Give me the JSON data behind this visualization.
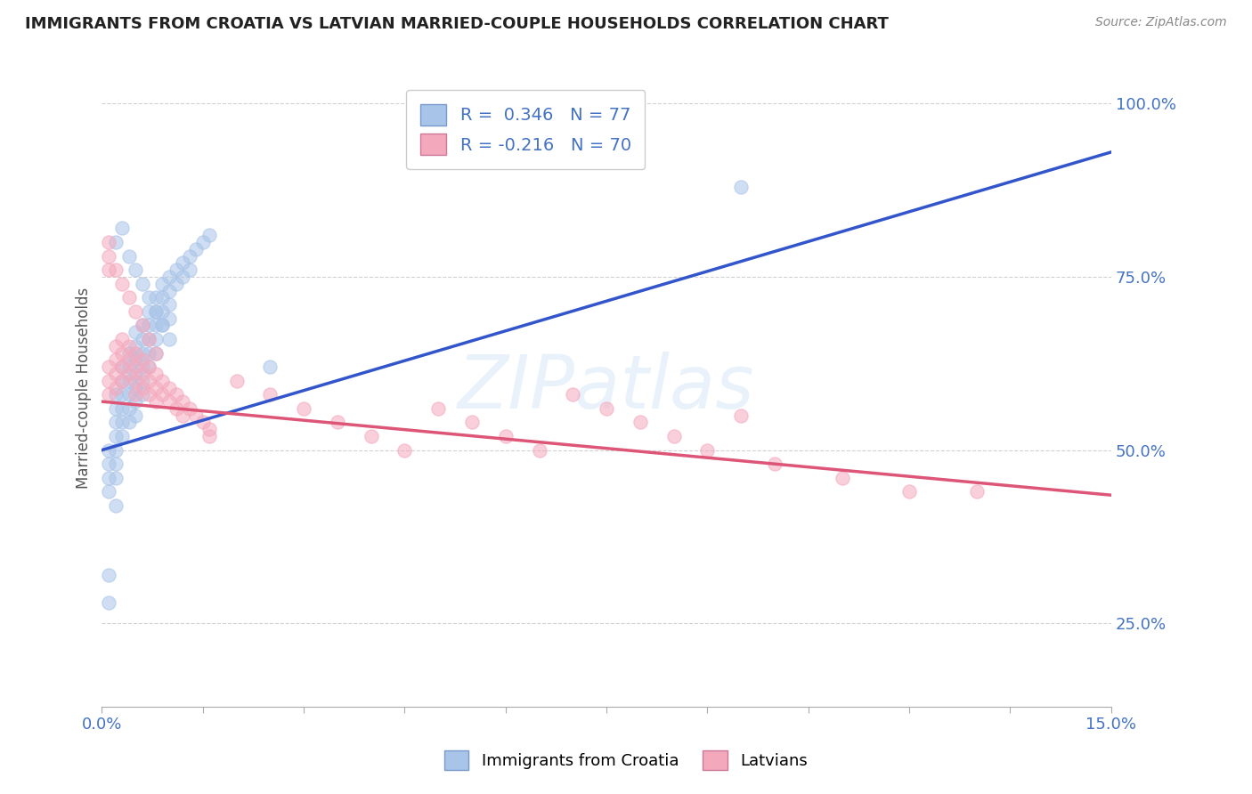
{
  "title": "IMMIGRANTS FROM CROATIA VS LATVIAN MARRIED-COUPLE HOUSEHOLDS CORRELATION CHART",
  "source": "Source: ZipAtlas.com",
  "ylabel": "Married-couple Households",
  "xlim": [
    0.0,
    0.15
  ],
  "ylim": [
    0.13,
    1.05
  ],
  "xticks": [
    0.0,
    0.015,
    0.03,
    0.045,
    0.06,
    0.075,
    0.09,
    0.105,
    0.12,
    0.135,
    0.15
  ],
  "xtick_labels": [
    "0.0%",
    "",
    "",
    "",
    "",
    "",
    "",
    "",
    "",
    "",
    "15.0%"
  ],
  "yticks": [
    0.25,
    0.5,
    0.75,
    1.0
  ],
  "ytick_labels": [
    "25.0%",
    "50.0%",
    "75.0%",
    "100.0%"
  ],
  "R_croatia": 0.346,
  "N_croatia": 77,
  "R_latvian": -0.216,
  "N_latvian": 70,
  "color_croatia": "#a8c4e8",
  "color_latvian": "#f4a8bc",
  "trendline_croatia": "#3355cc",
  "trendline_latvian": "#dd5577",
  "background_color": "#ffffff",
  "grid_color": "#cccccc",
  "legend_color_croatia": "#a8c4e8",
  "legend_color_latvian": "#f4a8bc",
  "trendline_blue_x0": 0.0,
  "trendline_blue_y0": 0.5,
  "trendline_blue_x1": 0.15,
  "trendline_blue_y1": 0.93,
  "trendline_pink_x0": 0.0,
  "trendline_pink_y0": 0.57,
  "trendline_pink_x1": 0.15,
  "trendline_pink_y1": 0.435,
  "croatia_scatter_x": [
    0.001,
    0.001,
    0.001,
    0.001,
    0.002,
    0.002,
    0.002,
    0.002,
    0.002,
    0.002,
    0.002,
    0.003,
    0.003,
    0.003,
    0.003,
    0.003,
    0.003,
    0.004,
    0.004,
    0.004,
    0.004,
    0.004,
    0.004,
    0.005,
    0.005,
    0.005,
    0.005,
    0.005,
    0.005,
    0.005,
    0.006,
    0.006,
    0.006,
    0.006,
    0.006,
    0.006,
    0.007,
    0.007,
    0.007,
    0.007,
    0.007,
    0.008,
    0.008,
    0.008,
    0.008,
    0.008,
    0.009,
    0.009,
    0.009,
    0.009,
    0.01,
    0.01,
    0.01,
    0.01,
    0.011,
    0.011,
    0.012,
    0.012,
    0.013,
    0.013,
    0.014,
    0.015,
    0.016,
    0.002,
    0.003,
    0.004,
    0.005,
    0.006,
    0.007,
    0.008,
    0.009,
    0.01,
    0.001,
    0.001,
    0.002,
    0.025,
    0.095
  ],
  "croatia_scatter_y": [
    0.5,
    0.48,
    0.46,
    0.44,
    0.58,
    0.56,
    0.54,
    0.52,
    0.5,
    0.48,
    0.46,
    0.62,
    0.6,
    0.58,
    0.56,
    0.54,
    0.52,
    0.64,
    0.62,
    0.6,
    0.58,
    0.56,
    0.54,
    0.67,
    0.65,
    0.63,
    0.61,
    0.59,
    0.57,
    0.55,
    0.68,
    0.66,
    0.64,
    0.62,
    0.6,
    0.58,
    0.7,
    0.68,
    0.66,
    0.64,
    0.62,
    0.72,
    0.7,
    0.68,
    0.66,
    0.64,
    0.74,
    0.72,
    0.7,
    0.68,
    0.75,
    0.73,
    0.71,
    0.69,
    0.76,
    0.74,
    0.77,
    0.75,
    0.78,
    0.76,
    0.79,
    0.8,
    0.81,
    0.8,
    0.82,
    0.78,
    0.76,
    0.74,
    0.72,
    0.7,
    0.68,
    0.66,
    0.32,
    0.28,
    0.42,
    0.62,
    0.88
  ],
  "latvian_scatter_x": [
    0.001,
    0.001,
    0.001,
    0.002,
    0.002,
    0.002,
    0.002,
    0.003,
    0.003,
    0.003,
    0.003,
    0.004,
    0.004,
    0.004,
    0.005,
    0.005,
    0.005,
    0.005,
    0.006,
    0.006,
    0.006,
    0.007,
    0.007,
    0.007,
    0.008,
    0.008,
    0.008,
    0.009,
    0.009,
    0.01,
    0.01,
    0.011,
    0.011,
    0.012,
    0.012,
    0.013,
    0.014,
    0.015,
    0.016,
    0.016,
    0.002,
    0.003,
    0.004,
    0.005,
    0.006,
    0.007,
    0.008,
    0.001,
    0.001,
    0.001,
    0.02,
    0.025,
    0.03,
    0.035,
    0.04,
    0.045,
    0.05,
    0.055,
    0.06,
    0.065,
    0.07,
    0.075,
    0.08,
    0.085,
    0.09,
    0.095,
    0.1,
    0.11,
    0.12,
    0.13
  ],
  "latvian_scatter_y": [
    0.62,
    0.6,
    0.58,
    0.65,
    0.63,
    0.61,
    0.59,
    0.66,
    0.64,
    0.62,
    0.6,
    0.65,
    0.63,
    0.61,
    0.64,
    0.62,
    0.6,
    0.58,
    0.63,
    0.61,
    0.59,
    0.62,
    0.6,
    0.58,
    0.61,
    0.59,
    0.57,
    0.6,
    0.58,
    0.59,
    0.57,
    0.58,
    0.56,
    0.57,
    0.55,
    0.56,
    0.55,
    0.54,
    0.53,
    0.52,
    0.76,
    0.74,
    0.72,
    0.7,
    0.68,
    0.66,
    0.64,
    0.8,
    0.78,
    0.76,
    0.6,
    0.58,
    0.56,
    0.54,
    0.52,
    0.5,
    0.56,
    0.54,
    0.52,
    0.5,
    0.58,
    0.56,
    0.54,
    0.52,
    0.5,
    0.55,
    0.48,
    0.46,
    0.44,
    0.44
  ]
}
